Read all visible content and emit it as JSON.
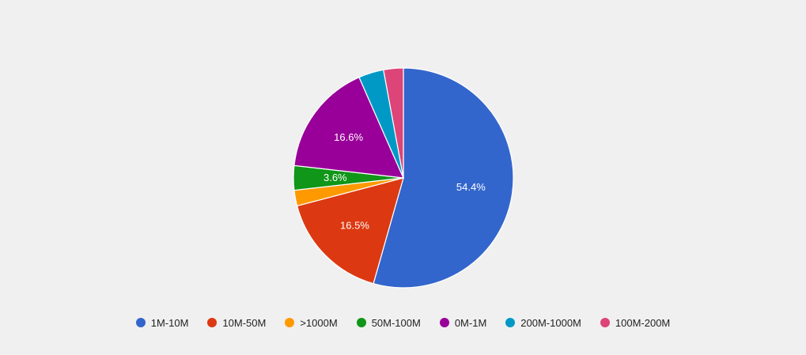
{
  "chart_data": {
    "type": "pie",
    "start_angle_deg": 0,
    "direction": "clockwise",
    "legend_position": "bottom",
    "slices": [
      {
        "label": "1M-10M",
        "value": 54.4,
        "display": "54.4%",
        "color": "#3366cc",
        "show_label": true
      },
      {
        "label": "10M-50M",
        "value": 16.5,
        "display": "16.5%",
        "color": "#dc3912",
        "show_label": true
      },
      {
        "label": ">1000M",
        "value": 2.3,
        "display": "",
        "color": "#ff9900",
        "show_label": false
      },
      {
        "label": "50M-100M",
        "value": 3.6,
        "display": "3.6%",
        "color": "#109618",
        "show_label": true
      },
      {
        "label": "0M-1M",
        "value": 16.6,
        "display": "16.6%",
        "color": "#990099",
        "show_label": true
      },
      {
        "label": "200M-1000M",
        "value": 3.7,
        "display": "",
        "color": "#0099c6",
        "show_label": false
      },
      {
        "label": "100M-200M",
        "value": 2.9,
        "display": "",
        "color": "#dd4477",
        "show_label": false
      }
    ]
  }
}
